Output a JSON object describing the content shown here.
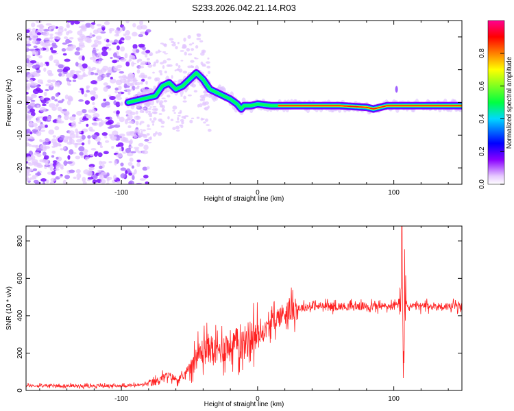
{
  "title": "S233.2026.042.21.14.R03",
  "chart_data": [
    {
      "type": "heatmap",
      "xlabel": "Height of straight line (km)",
      "ylabel": "Frequency (Hz)",
      "xlim": [
        -170,
        150
      ],
      "ylim": [
        -25,
        25
      ],
      "xticks": [
        -100,
        0,
        100
      ],
      "xtick_labels": [
        "-100",
        "0",
        "100"
      ],
      "yticks": [
        -20,
        -10,
        0,
        10,
        20
      ],
      "ytick_labels": [
        "-20",
        "-10",
        "0",
        "10",
        "20"
      ],
      "ridge": {
        "x": [
          -95,
          -85,
          -80,
          -75,
          -70,
          -65,
          -60,
          -55,
          -50,
          -45,
          -40,
          -35,
          -30,
          -25,
          -20,
          -15,
          -12,
          -10,
          -5,
          0,
          10,
          20,
          40,
          60,
          80,
          85,
          90,
          95,
          100,
          110,
          130,
          150
        ],
        "y": [
          0,
          1,
          1.5,
          2,
          5,
          6,
          4,
          5,
          7,
          9,
          7,
          4,
          3,
          2,
          1,
          -0.5,
          -2,
          -1,
          -1,
          -0.5,
          -1,
          -1,
          -1,
          -1,
          -1.5,
          -2,
          -1.5,
          -1,
          -1,
          -1,
          -1,
          -1
        ]
      },
      "colorbar": {
        "label": "Normalized spectral amplitude",
        "range": [
          0,
          1
        ],
        "ticks": [
          0.0,
          0.2,
          0.4,
          0.6,
          0.8
        ],
        "tick_labels": [
          "0.0",
          "0.2",
          "0.4",
          "0.6",
          "0.8"
        ],
        "colors": [
          "#ffffff",
          "#e6c8ff",
          "#8a00ff",
          "#0000ff",
          "#00d8ff",
          "#00ff40",
          "#ffff00",
          "#ff8000",
          "#ff0000",
          "#ff0090"
        ]
      }
    },
    {
      "type": "line",
      "xlabel": "Height of straight line (km)",
      "ylabel": "SNR (10 * v/v)",
      "xlim": [
        -170,
        150
      ],
      "ylim": [
        0,
        880
      ],
      "xticks": [
        -100,
        0,
        100
      ],
      "xtick_labels": [
        "-100",
        "0",
        "100"
      ],
      "yticks": [
        0,
        200,
        400,
        600,
        800
      ],
      "ytick_labels": [
        "0",
        "200",
        "400",
        "600",
        "800"
      ],
      "color": "#ff2020",
      "series": [
        {
          "name": "SNR",
          "x": [
            -170,
            -130,
            -100,
            -85,
            -75,
            -70,
            -65,
            -60,
            -55,
            -50,
            -45,
            -40,
            -35,
            -30,
            -25,
            -20,
            -15,
            -10,
            -5,
            0,
            5,
            10,
            15,
            20,
            25,
            30,
            40,
            50,
            60,
            70,
            80,
            90,
            100,
            103,
            105,
            106,
            107,
            108,
            110,
            120,
            130,
            140,
            150
          ],
          "y": [
            25,
            25,
            25,
            30,
            45,
            70,
            80,
            60,
            65,
            130,
            180,
            210,
            230,
            200,
            230,
            240,
            250,
            250,
            290,
            290,
            320,
            360,
            390,
            420,
            430,
            440,
            450,
            450,
            450,
            450,
            450,
            450,
            450,
            460,
            500,
            860,
            120,
            480,
            450,
            450,
            450,
            450,
            450
          ]
        }
      ]
    }
  ]
}
